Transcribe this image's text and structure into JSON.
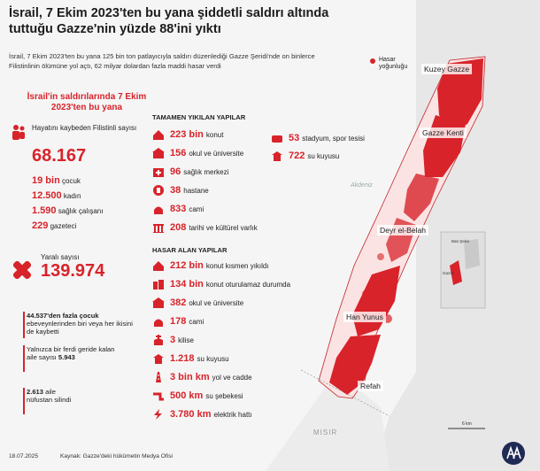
{
  "title": "İsrail, 7 Ekim 2023'ten bu yana şiddetli saldırı altında tuttuğu Gazze'nin yüzde 88'ini yıktı",
  "intro": "İsrail, 7 Ekim 2023'ten bu yana 125 bin ton patlayıcıyla saldırı düzenlediği Gazze Şeridi'nde on binlerce Filistinlinin ölümüne yol açtı, 62 milyar dolardan fazla maddi hasar verdi",
  "war_heading": "İsrail'in saldırılarında 7 Ekim 2023'ten bu yana",
  "casualties": {
    "killed_label": "Hayatını kaybeden Filistinli sayısı",
    "killed_value": "68.167",
    "breakdown": [
      {
        "value": "19 bin",
        "label": "çocuk"
      },
      {
        "value": "12.500",
        "label": "kadın"
      },
      {
        "value": "1.590",
        "label": "sağlık çalışanı"
      },
      {
        "value": "229",
        "label": "gazeteci"
      }
    ],
    "injured_label": "Yaralı sayısı",
    "injured_value": "139.974"
  },
  "notes": [
    {
      "bold": "44.537'den fazla çocuk",
      "text": " ebeveynlerinden biri veya her ikisini de kaybetti"
    },
    {
      "bold": "",
      "text": "Yalnızca bir ferdi geride kalan aile sayısı ",
      "bold2": "5.943"
    },
    {
      "bold": "2.613",
      "text": " aile nüfustan silindi"
    }
  ],
  "destroyed": {
    "heading": "TAMAMEN YIKILAN YAPILAR",
    "items": [
      {
        "value": "223 bin",
        "label": "konut",
        "icon": "house-icon"
      },
      {
        "value": "156",
        "label": "okul ve üniversite",
        "icon": "school-icon"
      },
      {
        "value": "96",
        "label": "sağlık merkezi",
        "icon": "clinic-icon"
      },
      {
        "value": "38",
        "label": "hastane",
        "icon": "hospital-icon"
      },
      {
        "value": "833",
        "label": "cami",
        "icon": "mosque-icon"
      },
      {
        "value": "208",
        "label": "tarihi ve kültürel varlık",
        "icon": "monument-icon"
      }
    ],
    "items2": [
      {
        "value": "53",
        "label": "stadyum, spor tesisi",
        "icon": "stadium-icon"
      },
      {
        "value": "722",
        "label": "su kuyusu",
        "icon": "well-icon"
      }
    ]
  },
  "damaged": {
    "heading": "HASAR ALAN YAPILAR",
    "items": [
      {
        "value": "212 bin",
        "label": "konut kısmen yıkıldı",
        "icon": "house-icon"
      },
      {
        "value": "134 bin",
        "label": "konut oturulamaz durumda",
        "icon": "building-icon"
      },
      {
        "value": "382",
        "label": "okul ve üniversite",
        "icon": "school-icon"
      },
      {
        "value": "178",
        "label": "cami",
        "icon": "mosque-icon"
      },
      {
        "value": "3",
        "label": "kilise",
        "icon": "church-icon"
      },
      {
        "value": "1.218",
        "label": "su kuyusu",
        "icon": "well-icon"
      },
      {
        "value": "3 bin km",
        "label": "yol ve cadde",
        "icon": "road-icon"
      },
      {
        "value": "500 km",
        "label": "su şebekesi",
        "icon": "pipe-icon"
      },
      {
        "value": "3.780 km",
        "label": "elektrik hattı",
        "icon": "lightning-icon"
      }
    ]
  },
  "map": {
    "legend": "Hasar yoğunluğu",
    "sea_label": "Akdeniz",
    "egypt_label": "MISIR",
    "scale": "6 km",
    "cities": [
      "Kuzey Gazze",
      "Gazze Kenti",
      "Deyr el-Belah",
      "Han Yunus",
      "Refah"
    ],
    "inset_labels": [
      "Batı Şeria",
      "Gazze"
    ],
    "damage_color": "#d8232a"
  },
  "footer": {
    "date": "18.07.2025",
    "source": "Kaynak: Gazze'deki hükümetin Medya Ofisi"
  }
}
